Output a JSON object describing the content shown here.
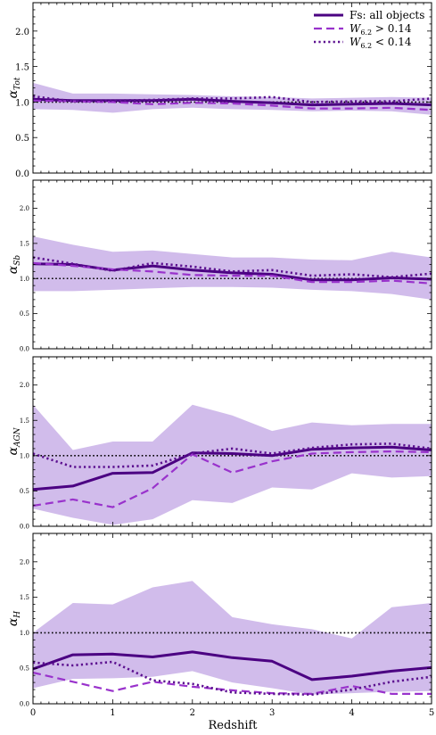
{
  "figure": {
    "xlabel": "Redshift",
    "x_ticks": [
      "0",
      "1",
      "2",
      "3",
      "4",
      "5"
    ],
    "xlim": [
      0,
      5
    ],
    "colors": {
      "all_objects": "#4b0082",
      "w_high": "#9932cc",
      "w_low": "#5b0f8f",
      "band": "#c9b0e8",
      "reference": "#000000"
    },
    "legend": [
      {
        "text": "Fs: all objects",
        "style": "solid"
      },
      {
        "text": "W6.2 > 0.14",
        "style": "dashed"
      },
      {
        "text": "W6.2 < 0.14",
        "style": "dotted"
      }
    ]
  },
  "chart_data": [
    {
      "type": "line",
      "ylabel": "αTot",
      "ylim": [
        0,
        2.4
      ],
      "yticks": [
        "0.0",
        "0.5",
        "1.0",
        "1.5",
        "2.0"
      ],
      "tick_size": "large",
      "reference_line": 1.0,
      "x": [
        0,
        0.5,
        1,
        1.5,
        2,
        2.5,
        3,
        3.5,
        4,
        4.5,
        5
      ],
      "band_upper": [
        1.27,
        1.12,
        1.12,
        1.11,
        1.1,
        1.08,
        1.07,
        1.05,
        1.06,
        1.07,
        1.06
      ],
      "band_lower": [
        0.9,
        0.89,
        0.85,
        0.9,
        0.92,
        0.9,
        0.89,
        0.87,
        0.88,
        0.87,
        0.82
      ],
      "series": [
        {
          "name": "Fs: all objects",
          "values": [
            1.04,
            1.02,
            1.02,
            1.02,
            1.04,
            1.01,
            0.99,
            0.96,
            0.97,
            0.98,
            0.96
          ]
        },
        {
          "name": "W6.2 > 0.14",
          "values": [
            1.02,
            1.01,
            1.0,
            0.97,
            0.99,
            0.98,
            0.95,
            0.91,
            0.91,
            0.92,
            0.89
          ]
        },
        {
          "name": "W6.2 < 0.14",
          "values": [
            1.08,
            1.01,
            1.02,
            1.03,
            1.05,
            1.05,
            1.07,
            1.0,
            1.01,
            1.01,
            1.05
          ]
        }
      ]
    },
    {
      "type": "line",
      "ylabel": "αSb",
      "ylim": [
        0,
        2.4
      ],
      "yticks": [
        "0.0",
        "0.5",
        "1.0",
        "1.5",
        "2.0"
      ],
      "tick_size": "small",
      "reference_line": 1.0,
      "x": [
        0,
        0.5,
        1,
        1.5,
        2,
        2.5,
        3,
        3.5,
        4,
        4.5,
        5
      ],
      "band_upper": [
        1.6,
        1.48,
        1.38,
        1.4,
        1.35,
        1.3,
        1.3,
        1.27,
        1.26,
        1.38,
        1.3
      ],
      "band_lower": [
        0.82,
        0.82,
        0.84,
        0.86,
        0.88,
        0.88,
        0.87,
        0.84,
        0.82,
        0.78,
        0.7
      ],
      "series": [
        {
          "name": "Fs: all objects",
          "values": [
            1.21,
            1.2,
            1.12,
            1.18,
            1.12,
            1.08,
            1.06,
            0.98,
            0.98,
            1.01,
            0.99
          ]
        },
        {
          "name": "W6.2 > 0.14",
          "values": [
            1.22,
            1.18,
            1.13,
            1.1,
            1.05,
            1.04,
            1.04,
            0.95,
            0.95,
            0.97,
            0.93
          ]
        },
        {
          "name": "W6.2 < 0.14",
          "values": [
            1.3,
            1.21,
            1.11,
            1.22,
            1.17,
            1.1,
            1.12,
            1.04,
            1.06,
            1.02,
            1.07
          ]
        }
      ]
    },
    {
      "type": "line",
      "ylabel": "αAGN",
      "ylim": [
        0,
        2.4
      ],
      "yticks": [
        "0.0",
        "0.5",
        "1.0",
        "1.5",
        "2.0"
      ],
      "tick_size": "small",
      "reference_line": 1.0,
      "x": [
        0,
        0.5,
        1,
        1.5,
        2,
        2.5,
        3,
        3.5,
        4,
        4.5,
        5
      ],
      "band_upper": [
        1.72,
        1.08,
        1.2,
        1.2,
        1.72,
        1.57,
        1.35,
        1.47,
        1.43,
        1.45,
        1.45
      ],
      "band_lower": [
        0.25,
        0.12,
        0.02,
        0.1,
        0.37,
        0.33,
        0.55,
        0.52,
        0.75,
        0.69,
        0.71
      ],
      "series": [
        {
          "name": "Fs: all objects",
          "values": [
            0.52,
            0.57,
            0.75,
            0.76,
            1.04,
            1.03,
            1.0,
            1.09,
            1.11,
            1.12,
            1.08
          ]
        },
        {
          "name": "W6.2 > 0.14",
          "values": [
            0.29,
            0.38,
            0.27,
            0.54,
            1.02,
            0.76,
            0.92,
            1.03,
            1.05,
            1.06,
            1.05
          ]
        },
        {
          "name": "W6.2 < 0.14",
          "values": [
            1.03,
            0.84,
            0.84,
            0.86,
            1.03,
            1.1,
            1.03,
            1.11,
            1.16,
            1.17,
            1.1
          ]
        }
      ]
    },
    {
      "type": "line",
      "ylabel": "αH",
      "ylim": [
        0,
        2.4
      ],
      "yticks": [
        "0.0",
        "0.5",
        "1.0",
        "1.5",
        "2.0"
      ],
      "tick_size": "small",
      "reference_line": 1.0,
      "x": [
        0,
        0.5,
        1,
        1.5,
        2,
        2.5,
        3,
        3.5,
        4,
        4.5,
        5
      ],
      "band_upper": [
        1.0,
        1.42,
        1.4,
        1.64,
        1.73,
        1.22,
        1.12,
        1.05,
        0.92,
        1.36,
        1.42
      ],
      "band_lower": [
        0.22,
        0.35,
        0.36,
        0.38,
        0.46,
        0.3,
        0.22,
        0.13,
        0.15,
        0.17,
        0.18
      ],
      "series": [
        {
          "name": "Fs: all objects",
          "values": [
            0.49,
            0.69,
            0.7,
            0.66,
            0.73,
            0.65,
            0.6,
            0.34,
            0.39,
            0.46,
            0.51
          ]
        },
        {
          "name": "W6.2 > 0.14",
          "values": [
            0.44,
            0.31,
            0.18,
            0.31,
            0.24,
            0.19,
            0.15,
            0.14,
            0.25,
            0.14,
            0.14
          ]
        },
        {
          "name": "W6.2 < 0.14",
          "values": [
            0.58,
            0.54,
            0.59,
            0.33,
            0.28,
            0.16,
            0.14,
            0.13,
            0.2,
            0.31,
            0.38
          ]
        }
      ]
    }
  ]
}
